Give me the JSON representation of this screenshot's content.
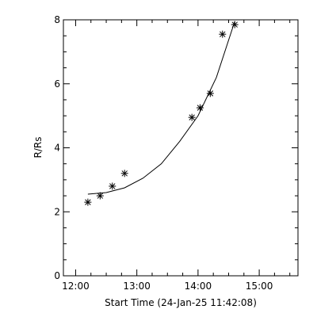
{
  "chart_data": {
    "type": "scatter",
    "title": "",
    "xlabel": "Start Time (24-Jan-25 11:42:08)",
    "ylabel": "R/Rs",
    "xlim": [
      "11:48",
      "15:38"
    ],
    "ylim": [
      0,
      8
    ],
    "x_ticks": [
      "12:00",
      "13:00",
      "14:00",
      "15:00"
    ],
    "y_ticks": [
      0,
      2,
      4,
      6,
      8
    ],
    "grid": false,
    "colors": {
      "marks": "#000000",
      "background": "#ffffff"
    },
    "series": [
      {
        "kind": "points",
        "marker": "asterisk",
        "x": [
          "12:12",
          "12:24",
          "12:36",
          "12:48",
          "13:54",
          "14:02",
          "14:12",
          "14:24",
          "14:36"
        ],
        "y": [
          2.3,
          2.5,
          2.8,
          3.2,
          4.95,
          5.25,
          5.7,
          7.55,
          7.85
        ]
      },
      {
        "kind": "fit",
        "x": [
          "12:12",
          "12:30",
          "12:48",
          "13:06",
          "13:24",
          "13:42",
          "14:00",
          "14:18",
          "14:36"
        ],
        "y": [
          2.55,
          2.6,
          2.75,
          3.05,
          3.5,
          4.2,
          5.0,
          6.2,
          7.95
        ]
      }
    ]
  }
}
